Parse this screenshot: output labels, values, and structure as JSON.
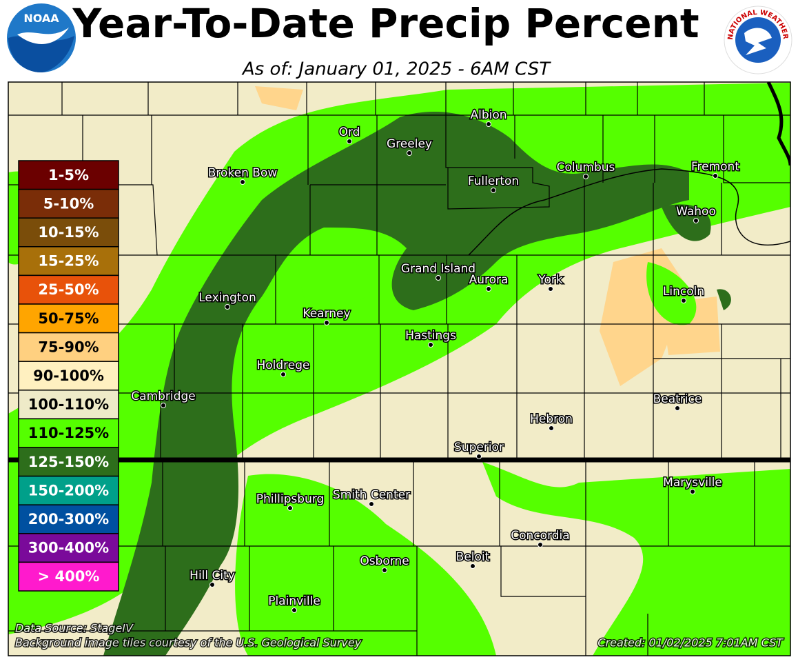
{
  "header": {
    "title": "Year-To-Date Precip Percent",
    "subtitle": "As of: January 01, 2025 - 6AM CST",
    "noaa_logo": "NOAA",
    "nws_logo": "NATIONAL WEATHER SERVICE"
  },
  "legend": {
    "items": [
      {
        "label": "1-5%",
        "color": "#6b0000"
      },
      {
        "label": "5-10%",
        "color": "#7a2d08"
      },
      {
        "label": "10-15%",
        "color": "#7a4d0a"
      },
      {
        "label": "15-25%",
        "color": "#a8700a"
      },
      {
        "label": "25-50%",
        "color": "#e8520a"
      },
      {
        "label": "50-75%",
        "color": "#ffa500"
      },
      {
        "label": "75-90%",
        "color": "#ffd080"
      },
      {
        "label": "90-100%",
        "color": "#fff0c0"
      },
      {
        "label": "100-110%",
        "color": "#eeeac8"
      },
      {
        "label": "110-125%",
        "color": "#55ff00"
      },
      {
        "label": "125-150%",
        "color": "#2d6e1b"
      },
      {
        "label": "150-200%",
        "color": "#00a08a"
      },
      {
        "label": "200-300%",
        "color": "#0050a0"
      },
      {
        "label": "300-400%",
        "color": "#7a0a9a"
      },
      {
        "label": "> 400%",
        "color": "#ff1acd"
      }
    ]
  },
  "cities": [
    "Ord",
    "Albion",
    "Greeley",
    "Broken Bow",
    "Fullerton",
    "Columbus",
    "Fremont",
    "Wahoo",
    "Grand Island",
    "Aurora",
    "York",
    "Lincoln",
    "Lexington",
    "Kearney",
    "Hastings",
    "Holdrege",
    "Cambridge",
    "Beatrice",
    "Hebron",
    "Superior",
    "Marysville",
    "Phillipsburg",
    "Smith Center",
    "Concordia",
    "Beloit",
    "Osborne",
    "Hill City",
    "Plainville"
  ],
  "footer": {
    "source": "Data Source: StageIV",
    "background": "Background image tiles courtesy of the U.S. Geological Survey",
    "created": "Created: 01/02/2025 7:01AM CST"
  }
}
